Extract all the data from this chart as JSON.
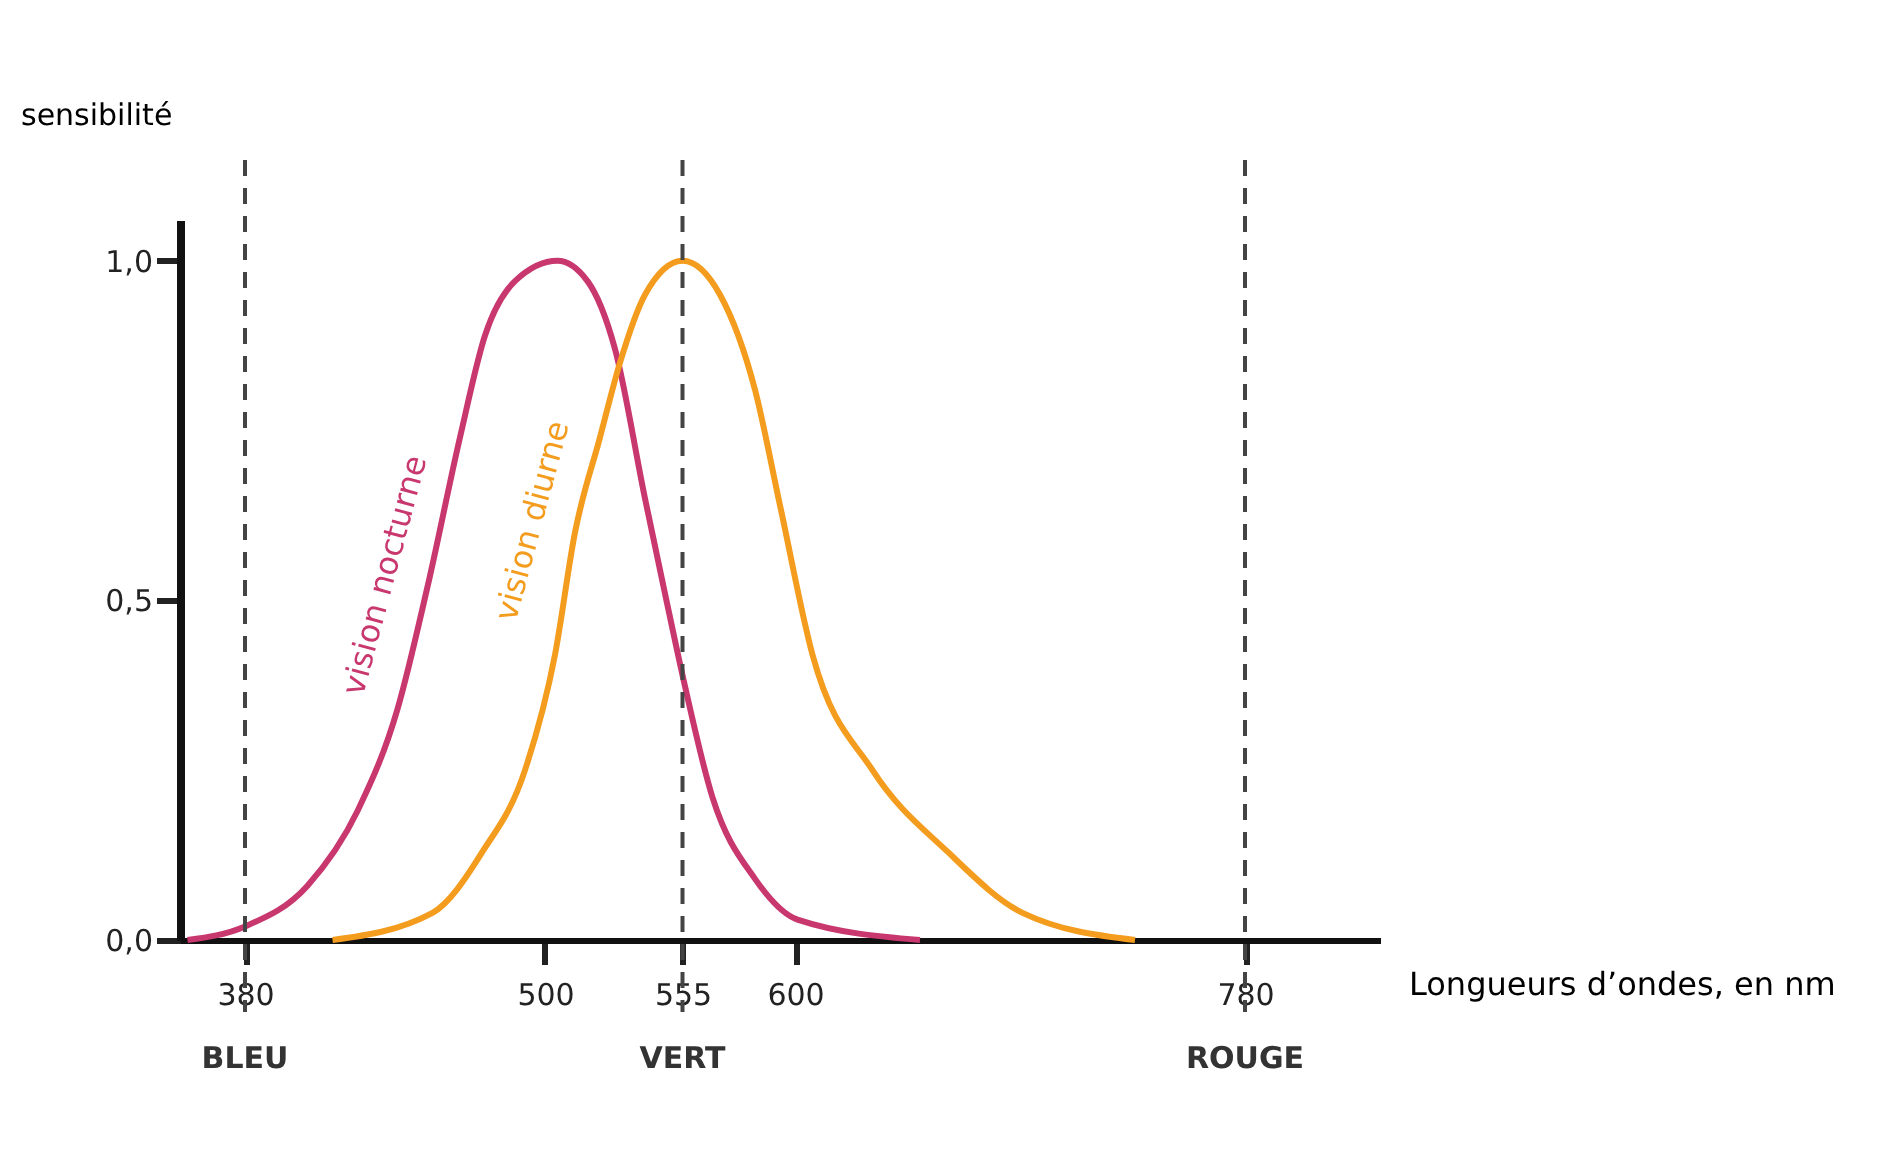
{
  "chart_data": {
    "type": "line",
    "xlabel": "Longueurs d’ondes, en nm",
    "ylabel": "sensibilité",
    "xlim": [
      354,
      834
    ],
    "ylim": [
      0,
      1.06
    ],
    "xticks": [
      380,
      500,
      555,
      600,
      780
    ],
    "yticks": [
      {
        "value": 0,
        "label": "0,0"
      },
      {
        "value": 0.5,
        "label": "0,5"
      },
      {
        "value": 1,
        "label": "1,0"
      }
    ],
    "grid": false,
    "legend": false,
    "marker": "none",
    "line_style": "solid",
    "series": [
      {
        "name": "vision nocturne",
        "color": "#c8376e",
        "x": [
          357,
          380,
          405,
          425,
          441,
          453,
          466,
          476,
          488,
          505,
          517,
          528,
          540,
          548,
          555,
          567,
          584,
          601,
          650
        ],
        "values": [
          0,
          0.02,
          0.08,
          0.19,
          0.34,
          0.52,
          0.74,
          0.89,
          0.97,
          1.0,
          0.97,
          0.87,
          0.65,
          0.51,
          0.39,
          0.21,
          0.09,
          0.03,
          0
        ]
      },
      {
        "name": "vision diurne",
        "color": "#f39c1e",
        "x": [
          415,
          455,
          475,
          492,
          504,
          512,
          522,
          530,
          540,
          555,
          570,
          584,
          594,
          607,
          631,
          661,
          691,
          736
        ],
        "values": [
          0,
          0.04,
          0.13,
          0.25,
          0.42,
          0.6,
          0.74,
          0.85,
          0.95,
          1.0,
          0.95,
          0.81,
          0.64,
          0.42,
          0.25,
          0.13,
          0.04,
          0
        ]
      }
    ],
    "ref_lines": [
      {
        "axis": "x",
        "value": 380,
        "label": "BLEU",
        "line_style": "dashed"
      },
      {
        "axis": "x",
        "value": 555,
        "label": "VERT",
        "line_style": "dashed"
      },
      {
        "axis": "x",
        "value": 780,
        "label": "ROUGE",
        "line_style": "dashed"
      }
    ]
  }
}
